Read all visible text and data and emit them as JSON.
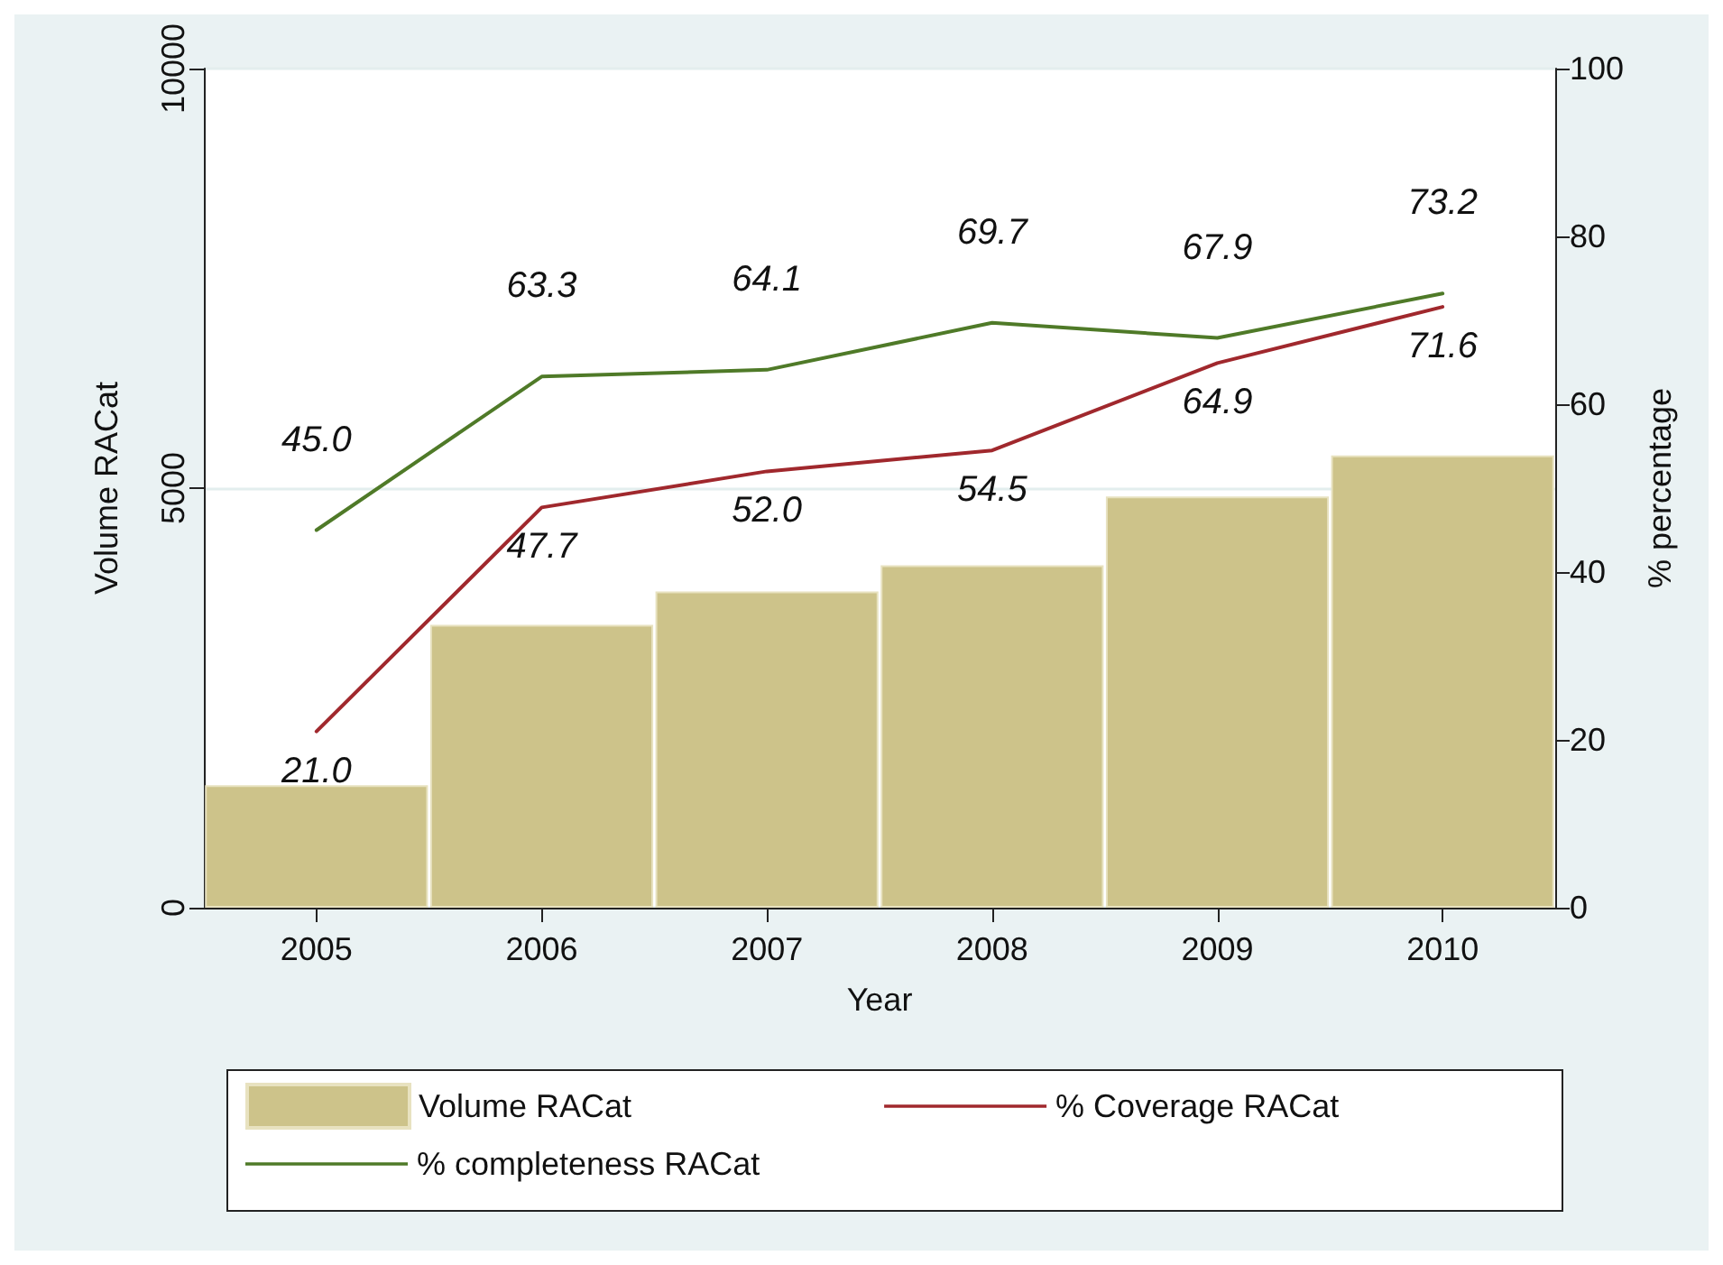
{
  "chart_data": {
    "type": "bar",
    "xlabel": "Year",
    "ylabel": "Volume RACat",
    "y2label": "% percentage",
    "categories": [
      "2005",
      "2006",
      "2007",
      "2008",
      "2009",
      "2010"
    ],
    "series": [
      {
        "name": "Volume RACat",
        "color": "#cdc38a",
        "values": [
          1460,
          3370,
          3770,
          4080,
          4900,
          5390
        ]
      },
      {
        "name": "% Coverage RACat",
        "type": "line",
        "axis": "y2",
        "color": "#a0282d",
        "values": [
          21.0,
          47.7,
          52.0,
          54.5,
          64.9,
          71.6
        ],
        "value_labels": [
          "21.0",
          "47.7",
          "52.0",
          "54.5",
          "64.9",
          "71.6"
        ]
      },
      {
        "name": "% completeness RACat",
        "type": "line",
        "axis": "y2",
        "color": "#4f7a28",
        "values": [
          45.0,
          63.3,
          64.1,
          69.7,
          67.9,
          73.2
        ],
        "value_labels": [
          "45.0",
          "63.3",
          "64.1",
          "69.7",
          "67.9",
          "73.2"
        ]
      }
    ],
    "ylim": [
      0,
      10000
    ],
    "yticks": [
      0,
      5000,
      10000
    ],
    "y2lim": [
      0,
      100
    ],
    "y2ticks": [
      0,
      20,
      40,
      60,
      80,
      100
    ],
    "grid": "y",
    "legend": "bottom",
    "marker": "none",
    "line_style": "solid"
  }
}
